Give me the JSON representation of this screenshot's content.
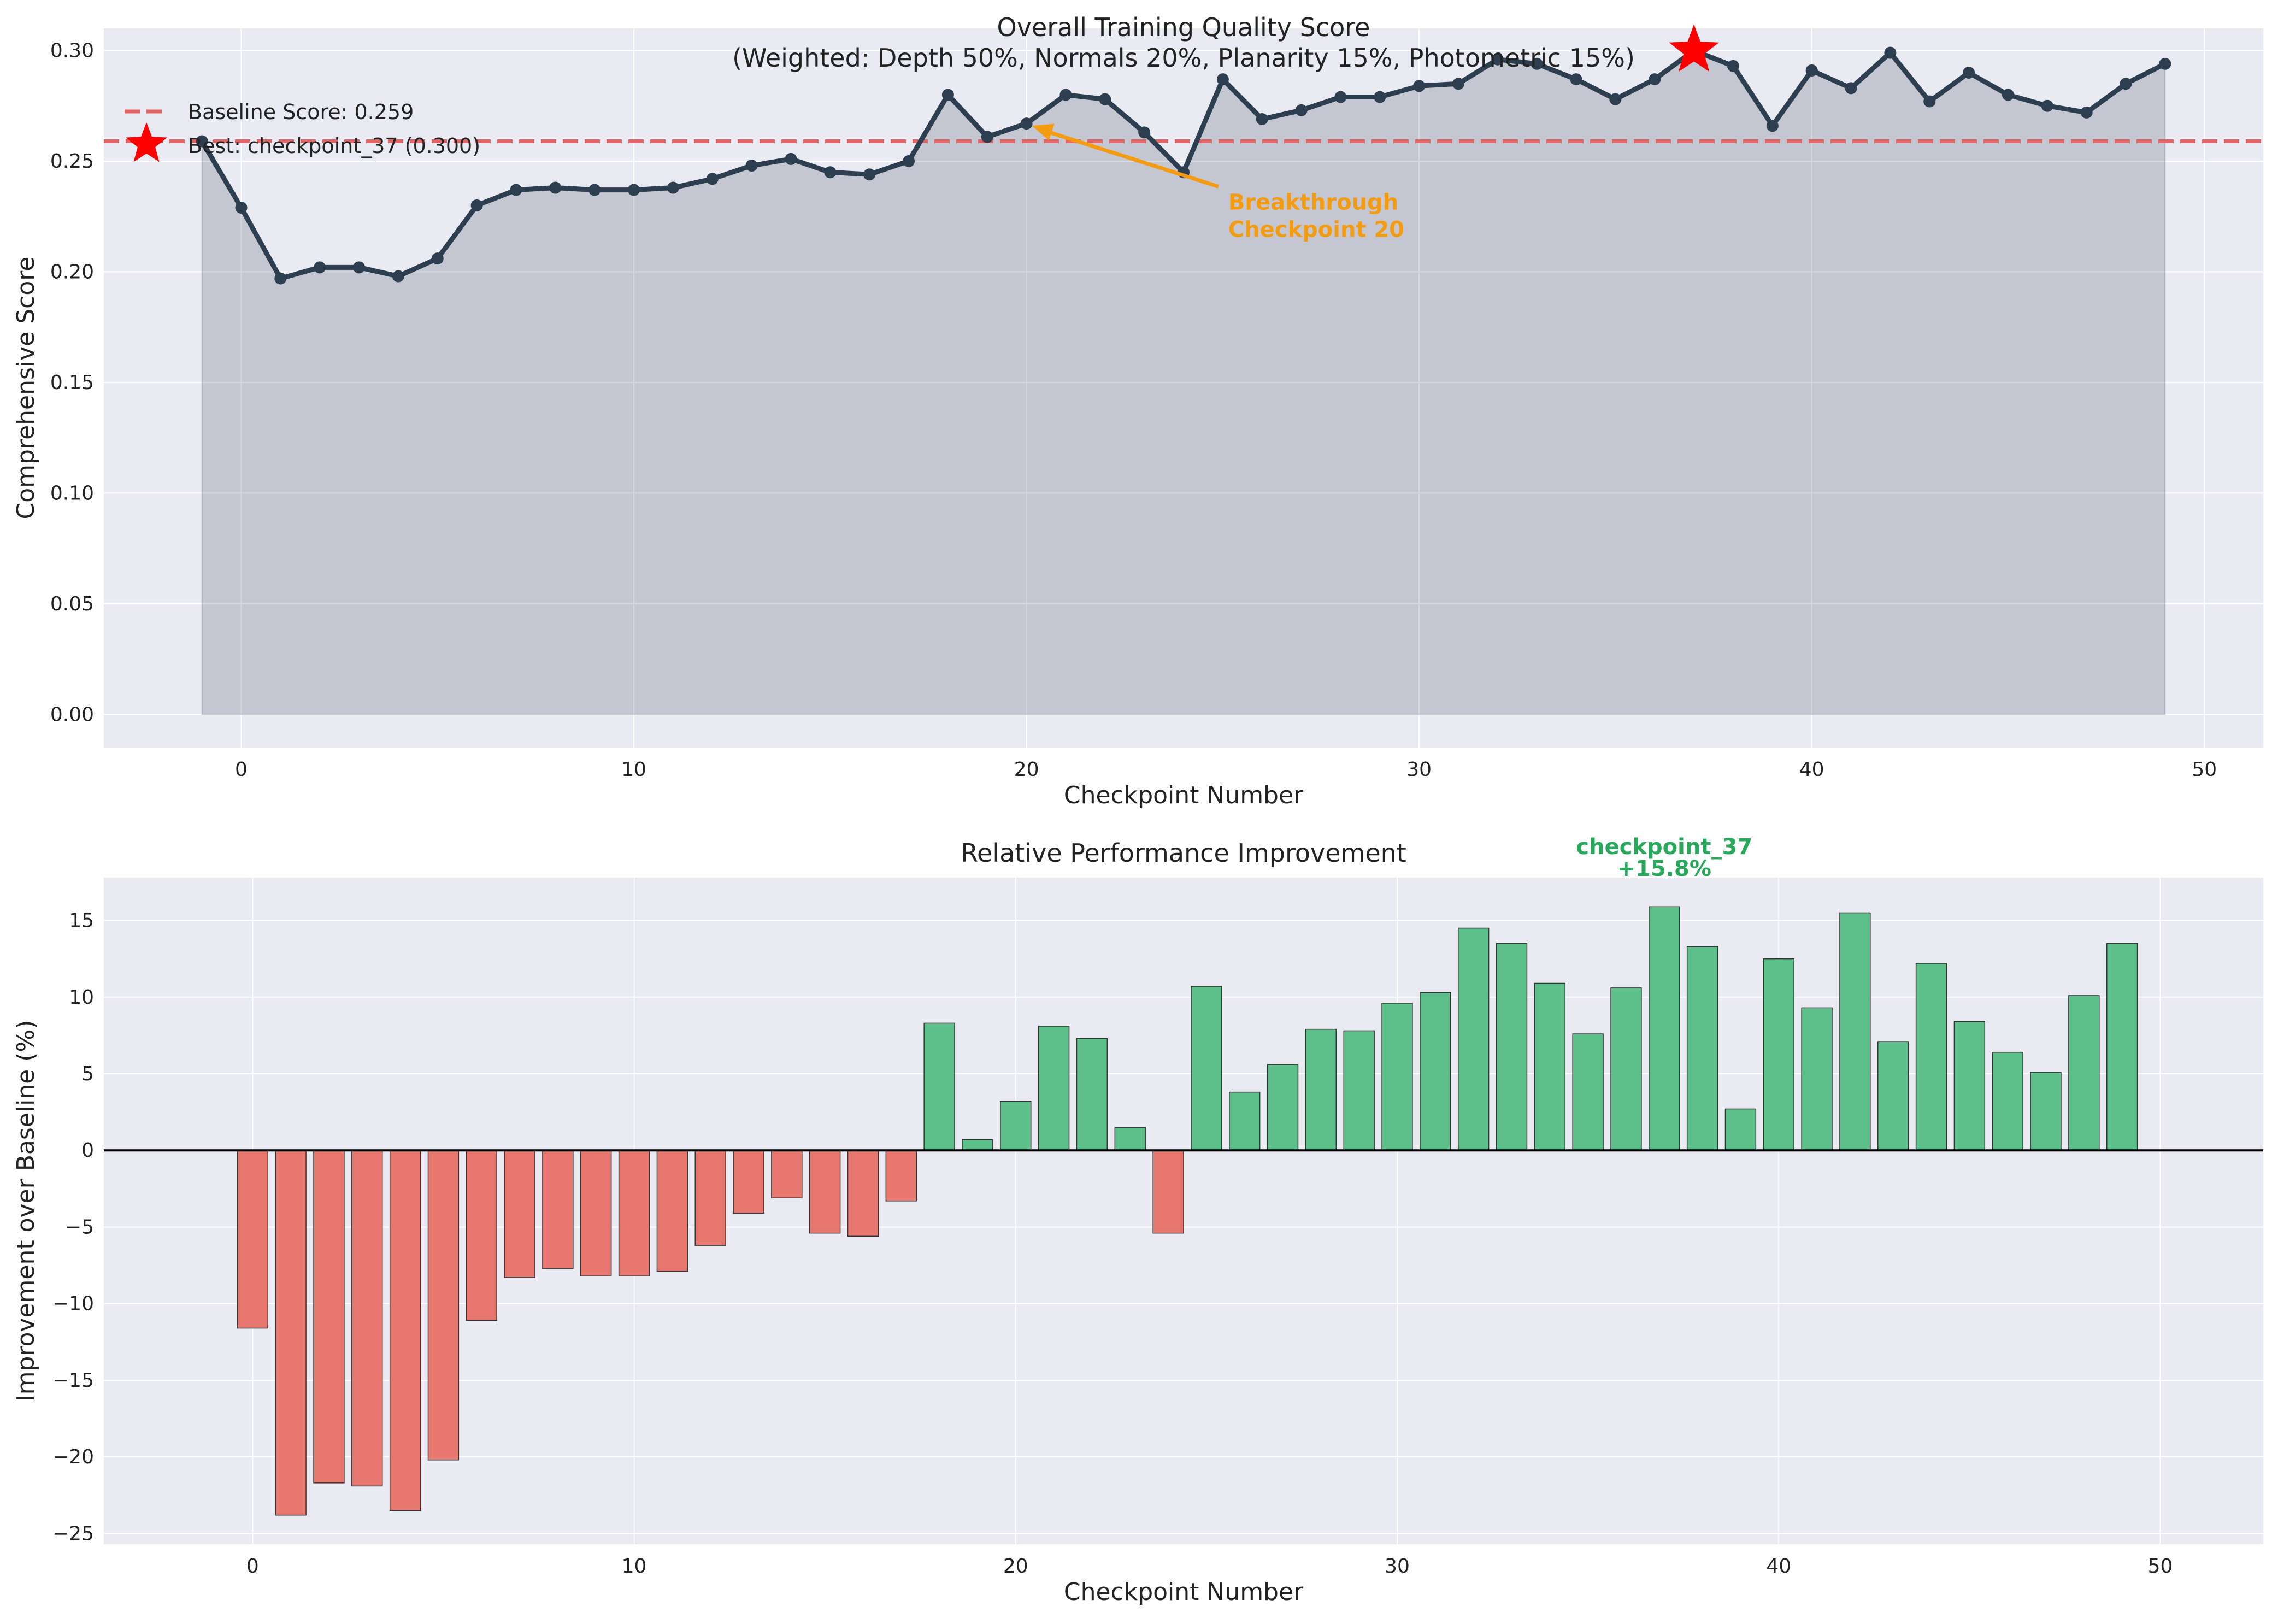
{
  "chart_data": [
    {
      "type": "line",
      "title": "Overall Training Quality Score",
      "subtitle": "(Weighted: Depth 50%, Normals 20%, Planarity 15%, Photometric 15%)",
      "xlabel": "Checkpoint Number",
      "ylabel": "Comprehensive Score",
      "xlim": [
        -3.5,
        51.5
      ],
      "ylim": [
        -0.015,
        0.31
      ],
      "xticks": [
        0,
        10,
        20,
        30,
        40,
        50
      ],
      "xtick_labels": [
        "0",
        "10",
        "20",
        "30",
        "40",
        "50"
      ],
      "yticks": [
        0,
        0.05,
        0.1,
        0.15,
        0.2,
        0.25,
        0.3
      ],
      "ytick_labels": [
        "0.00",
        "0.05",
        "0.10",
        "0.15",
        "0.20",
        "0.25",
        "0.30"
      ],
      "grid": true,
      "legend_position": "top-left",
      "series": [
        {
          "name": "",
          "color": "#2c3e50",
          "fill_area": true,
          "x": [
            -1,
            0,
            1,
            2,
            3,
            4,
            5,
            6,
            7,
            8,
            9,
            10,
            11,
            12,
            13,
            14,
            15,
            16,
            17,
            18,
            19,
            20,
            21,
            22,
            23,
            24,
            25,
            26,
            27,
            28,
            29,
            30,
            31,
            32,
            33,
            34,
            35,
            36,
            37,
            38,
            39,
            40,
            41,
            42,
            43,
            44,
            45,
            46,
            47,
            48,
            49
          ],
          "values": [
            0.259,
            0.229,
            0.197,
            0.202,
            0.202,
            0.198,
            0.206,
            0.23,
            0.237,
            0.238,
            0.237,
            0.237,
            0.238,
            0.242,
            0.248,
            0.251,
            0.245,
            0.244,
            0.25,
            0.28,
            0.261,
            0.267,
            0.28,
            0.278,
            0.263,
            0.245,
            0.287,
            0.269,
            0.273,
            0.279,
            0.279,
            0.284,
            0.285,
            0.296,
            0.294,
            0.287,
            0.278,
            0.287,
            0.3,
            0.293,
            0.266,
            0.291,
            0.283,
            0.299,
            0.277,
            0.29,
            0.28,
            0.275,
            0.272,
            0.285,
            0.294
          ]
        }
      ],
      "legend": [
        {
          "label": "Baseline Score: 0.259",
          "style": "dashed-line",
          "color": "#e06666"
        },
        {
          "label": "Best: checkpoint_37 (0.300)",
          "style": "star",
          "color": "#ff0000"
        }
      ],
      "baseline": {
        "value": 0.259,
        "color": "#e06666"
      },
      "best_point": {
        "x": 37,
        "y": 0.3,
        "color": "#ff0000"
      },
      "annotation": {
        "lines": [
          "Breakthrough",
          "Checkpoint 20"
        ],
        "target_x": 20,
        "target_y": 0.267,
        "text_x": 25,
        "text_y": 0.241,
        "color": "#f39c12"
      }
    },
    {
      "type": "bar",
      "title": "Relative Performance Improvement",
      "xlabel": "Checkpoint Number",
      "ylabel": "Improvement over Baseline (%)",
      "xlim": [
        -3.9,
        52.7
      ],
      "ylim": [
        -25.7,
        17.8
      ],
      "xticks": [
        0,
        10,
        20,
        30,
        40,
        50
      ],
      "xtick_labels": [
        "0",
        "10",
        "20",
        "30",
        "40",
        "50"
      ],
      "yticks": [
        -25,
        -20,
        -15,
        -10,
        -5,
        0,
        5,
        10,
        15
      ],
      "ytick_labels": [
        "−25",
        "−20",
        "−15",
        "−10",
        "−5",
        "0",
        "5",
        "10",
        "15"
      ],
      "grid": true,
      "positive_color": "#5dbf89",
      "negative_color": "#e8786f",
      "categories": [
        0,
        1,
        2,
        3,
        4,
        5,
        6,
        7,
        8,
        9,
        10,
        11,
        12,
        13,
        14,
        15,
        16,
        17,
        18,
        19,
        20,
        21,
        22,
        23,
        24,
        25,
        26,
        27,
        28,
        29,
        30,
        31,
        32,
        33,
        34,
        35,
        36,
        37,
        38,
        39,
        40,
        41,
        42,
        43,
        44,
        45,
        46,
        47,
        48,
        49
      ],
      "values": [
        -11.6,
        -23.8,
        -21.7,
        -21.9,
        -23.5,
        -20.2,
        -11.1,
        -8.3,
        -7.7,
        -8.2,
        -8.2,
        -7.9,
        -6.2,
        -4.1,
        -3.1,
        -5.4,
        -5.6,
        -3.3,
        8.3,
        0.7,
        3.2,
        8.1,
        7.3,
        1.5,
        -5.4,
        10.7,
        3.8,
        5.6,
        7.9,
        7.8,
        9.6,
        10.3,
        14.5,
        13.5,
        10.9,
        7.6,
        10.6,
        15.9,
        13.3,
        2.7,
        12.5,
        9.3,
        15.5,
        7.1,
        12.2,
        8.4,
        6.4,
        5.1,
        10.1,
        13.5
      ],
      "annotation": {
        "lines": [
          "checkpoint_37",
          "+15.8%"
        ],
        "x": 37,
        "color": "#27a85a"
      }
    }
  ]
}
